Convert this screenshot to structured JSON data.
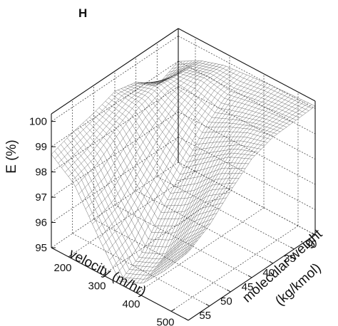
{
  "chart_data": {
    "type": "surface",
    "panel_label": "H",
    "zlabel": "E (%)",
    "xlabel": "velocity (m/hr)",
    "ylabel": "molecular weight",
    "ylabel_unit": "(kg/kmol)",
    "x_ticks": [
      "30",
      "35",
      "40",
      "45",
      "50",
      "55",
      "60"
    ],
    "y_ticks": [
      "200",
      "300",
      "400",
      "500"
    ],
    "z_ticks": [
      "95",
      "96",
      "97",
      "98",
      "99",
      "100"
    ],
    "xlim": [
      30,
      60
    ],
    "ylim": [
      150,
      550
    ],
    "zlim": [
      95,
      100.3
    ],
    "grid": true,
    "surface_z": [
      [
        99.0,
        99.5,
        99.8,
        99.9,
        100.0,
        100.05,
        100.1
      ],
      [
        98.6,
        99.6,
        99.8,
        99.6,
        99.8,
        99.95,
        100.05
      ],
      [
        99.3,
        99.7,
        99.3,
        98.9,
        99.4,
        99.8,
        100.0
      ],
      [
        99.5,
        99.4,
        98.6,
        97.9,
        98.6,
        99.3,
        99.7
      ],
      [
        99.2,
        98.9,
        97.7,
        96.8,
        97.3,
        98.4,
        99.0
      ],
      [
        99.0,
        98.3,
        96.9,
        95.6,
        96.0,
        97.3,
        98.2
      ],
      [
        98.7,
        98.0,
        96.5,
        95.1,
        95.5,
        96.5,
        97.7
      ]
    ]
  }
}
